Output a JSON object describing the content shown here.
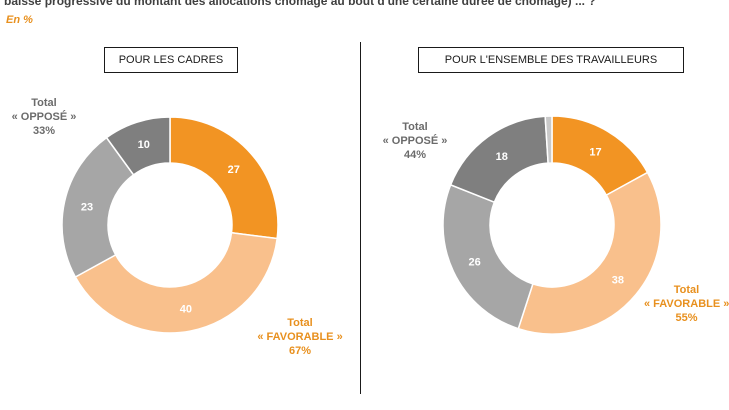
{
  "header": {
    "question": "baisse progressive du montant des allocations chômage au bout d'une certaine durée de chômage) ... ?",
    "unit": "En %"
  },
  "colors": {
    "dark_grey": "#7f7f7f",
    "mid_grey": "#a6a6a6",
    "light_grey": "#c9c9c9",
    "orange": "#f29423",
    "peach": "#f9c08c",
    "opposed_text": "#6b6b6b",
    "favorable_text": "#e8901e"
  },
  "panels": [
    {
      "title_prefix": "POUR LES ",
      "title_bold": "CADRES",
      "opposed": {
        "line1": "Total",
        "line2": "« OPPOSÉ »",
        "value": "33%"
      },
      "favorable": {
        "line1": "Total",
        "line2": "« FAVORABLE »",
        "value": "67%"
      }
    },
    {
      "title_prefix": "POUR L'",
      "title_bold": "ENSEMBLE DES TRAVAILLEURS",
      "opposed": {
        "line1": "Total",
        "line2": "« OPPOSÉ »",
        "value": "44%"
      },
      "favorable": {
        "line1": "Total",
        "line2": "« FAVORABLE »",
        "value": "55%"
      }
    }
  ],
  "chart_data": [
    {
      "type": "pie",
      "variant": "donut",
      "title": "POUR LES CADRES",
      "start": "12 o'clock, clockwise",
      "slices": [
        {
          "value": 27,
          "label": "27",
          "color": "#f29423"
        },
        {
          "value": 40,
          "label": "40",
          "color": "#f9c08c"
        },
        {
          "value": 23,
          "label": "23",
          "color": "#a6a6a6"
        },
        {
          "value": 10,
          "label": "10",
          "color": "#7f7f7f"
        }
      ]
    },
    {
      "type": "pie",
      "variant": "donut",
      "title": "POUR L'ENSEMBLE DES TRAVAILLEURS",
      "start": "12 o'clock, clockwise",
      "slices": [
        {
          "value": 17,
          "label": "17",
          "color": "#f29423"
        },
        {
          "value": 38,
          "label": "38",
          "color": "#f9c08c"
        },
        {
          "value": 26,
          "label": "26",
          "color": "#a6a6a6"
        },
        {
          "value": 18,
          "label": "18",
          "color": "#7f7f7f"
        },
        {
          "value": 1,
          "label": "",
          "color": "#c9c9c9"
        }
      ]
    }
  ]
}
